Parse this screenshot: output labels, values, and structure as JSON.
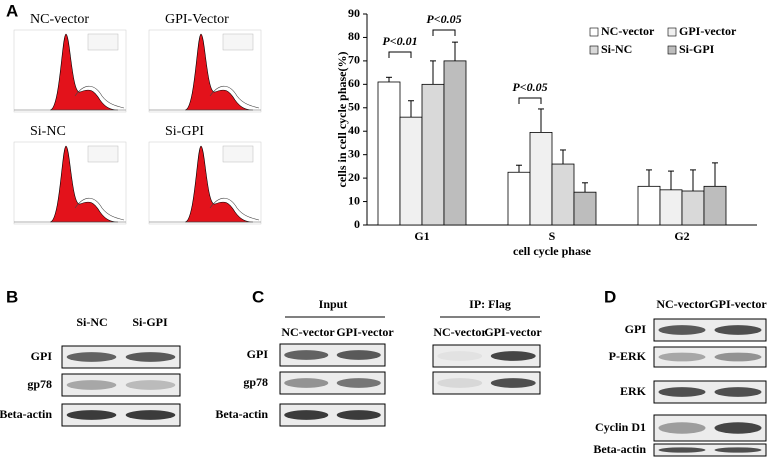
{
  "panel_labels": {
    "a": "A",
    "b": "B",
    "c": "C",
    "d": "D"
  },
  "histograms": [
    "NC-vector",
    "GPI-Vector",
    "Si-NC",
    "Si-GPI"
  ],
  "chart_data": {
    "type": "bar",
    "ylabel": "cells in cell cycle phase(%)",
    "xlabel": "cell cycle phase",
    "categories": [
      "G1",
      "S",
      "G2"
    ],
    "series": [
      {
        "name": "NC-vector",
        "color": "#ffffff",
        "values": [
          61,
          22.5,
          16.5
        ],
        "errors": [
          2,
          3,
          7
        ]
      },
      {
        "name": "GPI-vector",
        "color": "#f0f0f0",
        "values": [
          46,
          39.5,
          15
        ],
        "errors": [
          7,
          10,
          8
        ]
      },
      {
        "name": "Si-NC",
        "color": "#d9d9d9",
        "values": [
          60,
          26,
          14.5
        ],
        "errors": [
          10,
          6,
          9
        ]
      },
      {
        "name": "Si-GPI",
        "color": "#bdbdbd",
        "values": [
          70,
          14,
          16.5
        ],
        "errors": [
          8,
          4,
          10
        ]
      }
    ],
    "ylim": [
      0,
      90
    ],
    "yticks": [
      0,
      10,
      20,
      30,
      40,
      50,
      60,
      70,
      80,
      90
    ],
    "annotations": [
      "P<0.01",
      "P<0.05",
      "P<0.05"
    ]
  },
  "panel_b": {
    "columns": [
      "Si-NC",
      "Si-GPI"
    ],
    "rows": [
      "GPI",
      "gp78",
      "Beta-actin"
    ]
  },
  "panel_c": {
    "input": "Input",
    "ip": "IP: Flag",
    "input_columns": [
      "NC-vector",
      "GPI-vector"
    ],
    "ip_columns": [
      "NC-vector",
      "GPI-vector"
    ],
    "rows": [
      "GPI",
      "gp78",
      "Beta-actin"
    ]
  },
  "panel_d": {
    "columns": [
      "NC-vector",
      "GPI-vector"
    ],
    "rows": [
      "GPI",
      "P-ERK",
      "ERK",
      "Cyclin D1",
      "Beta-actin"
    ]
  }
}
